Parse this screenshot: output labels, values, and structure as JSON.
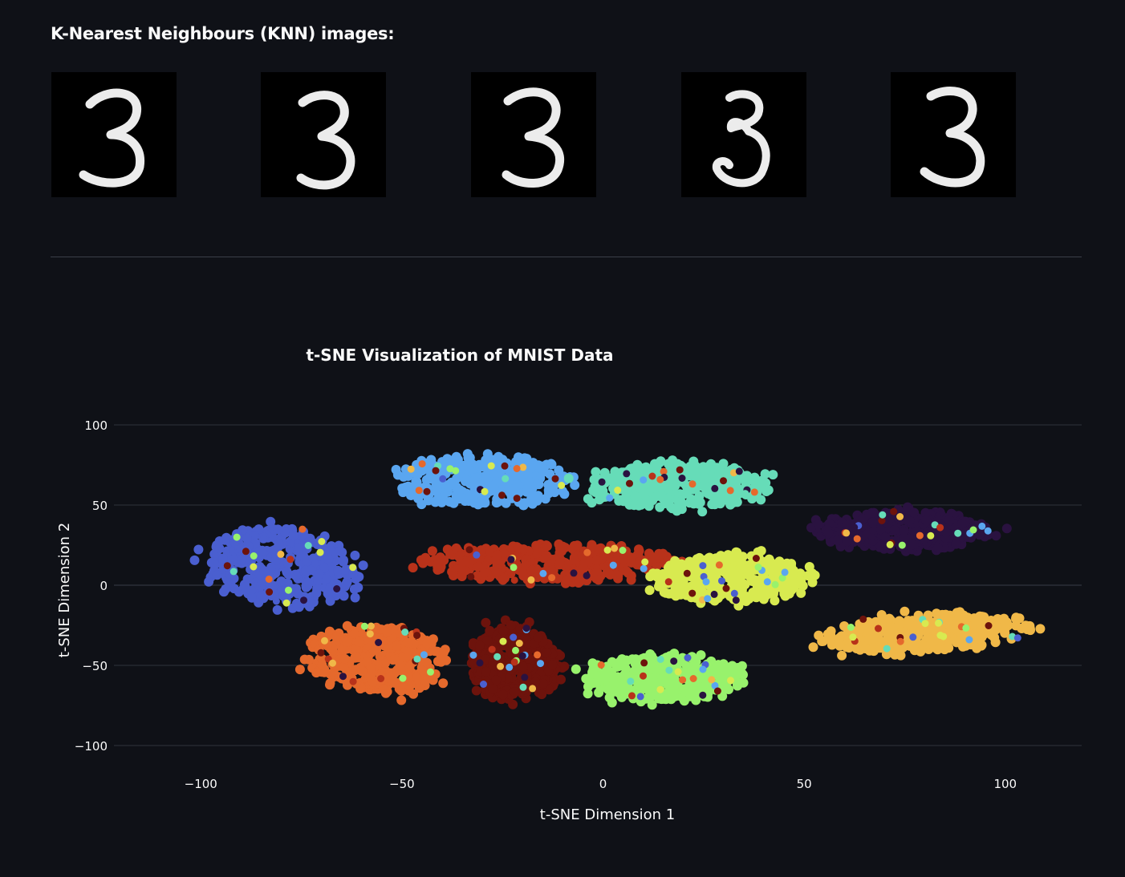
{
  "knn": {
    "heading": "K-Nearest Neighbours (KNN) images:",
    "images": [
      {
        "digit": "3"
      },
      {
        "digit": "3"
      },
      {
        "digit": "3"
      },
      {
        "digit": "3"
      },
      {
        "digit": "3"
      }
    ]
  },
  "chart_data": {
    "type": "scatter",
    "title": "t-SNE Visualization of MNIST Data",
    "xlabel": "t-SNE Dimension 1",
    "ylabel": "t-SNE Dimension 2",
    "xlim": [
      -120,
      119
    ],
    "ylim": [
      -110,
      110
    ],
    "xticks": [
      -100,
      -50,
      0,
      50,
      100
    ],
    "xtick_labels": [
      "−100",
      "−50",
      "0",
      "50",
      "100"
    ],
    "yticks": [
      100,
      50,
      0,
      -50,
      -100
    ],
    "ytick_labels": [
      "100",
      "50",
      "0",
      "−50",
      "−100"
    ],
    "grid": "horizontal",
    "legend": "none",
    "clusters": [
      {
        "color": "#4a5fd0",
        "center": [
          -80,
          12
        ],
        "spread": [
          17,
          24
        ],
        "tilt": 0.35
      },
      {
        "color": "#5aa6f0",
        "center": [
          -30,
          65
        ],
        "spread": [
          20,
          15
        ],
        "tilt": 0.0
      },
      {
        "color": "#66dcb8",
        "center": [
          18,
          62
        ],
        "spread": [
          22,
          13
        ],
        "tilt": 0.0
      },
      {
        "color": "#2a1240",
        "center": [
          75,
          34
        ],
        "spread": [
          20,
          12
        ],
        "tilt": -0.05
      },
      {
        "color": "#b8321a",
        "center": [
          -14,
          14
        ],
        "spread": [
          28,
          11
        ],
        "tilt": 0.0
      },
      {
        "color": "#d8ea50",
        "center": [
          32,
          4
        ],
        "spread": [
          18,
          14
        ],
        "tilt": 0.1
      },
      {
        "color": "#e5692c",
        "center": [
          -56,
          -46
        ],
        "spread": [
          16,
          20
        ],
        "tilt": 0.15
      },
      {
        "color": "#6d130c",
        "center": [
          -22,
          -48
        ],
        "spread": [
          10,
          22
        ],
        "tilt": 0.0
      },
      {
        "color": "#98f26c",
        "center": [
          15,
          -58
        ],
        "spread": [
          18,
          14
        ],
        "tilt": 0.0
      },
      {
        "color": "#f0b848",
        "center": [
          80,
          -30
        ],
        "spread": [
          24,
          11
        ],
        "tilt": 0.22
      }
    ]
  }
}
